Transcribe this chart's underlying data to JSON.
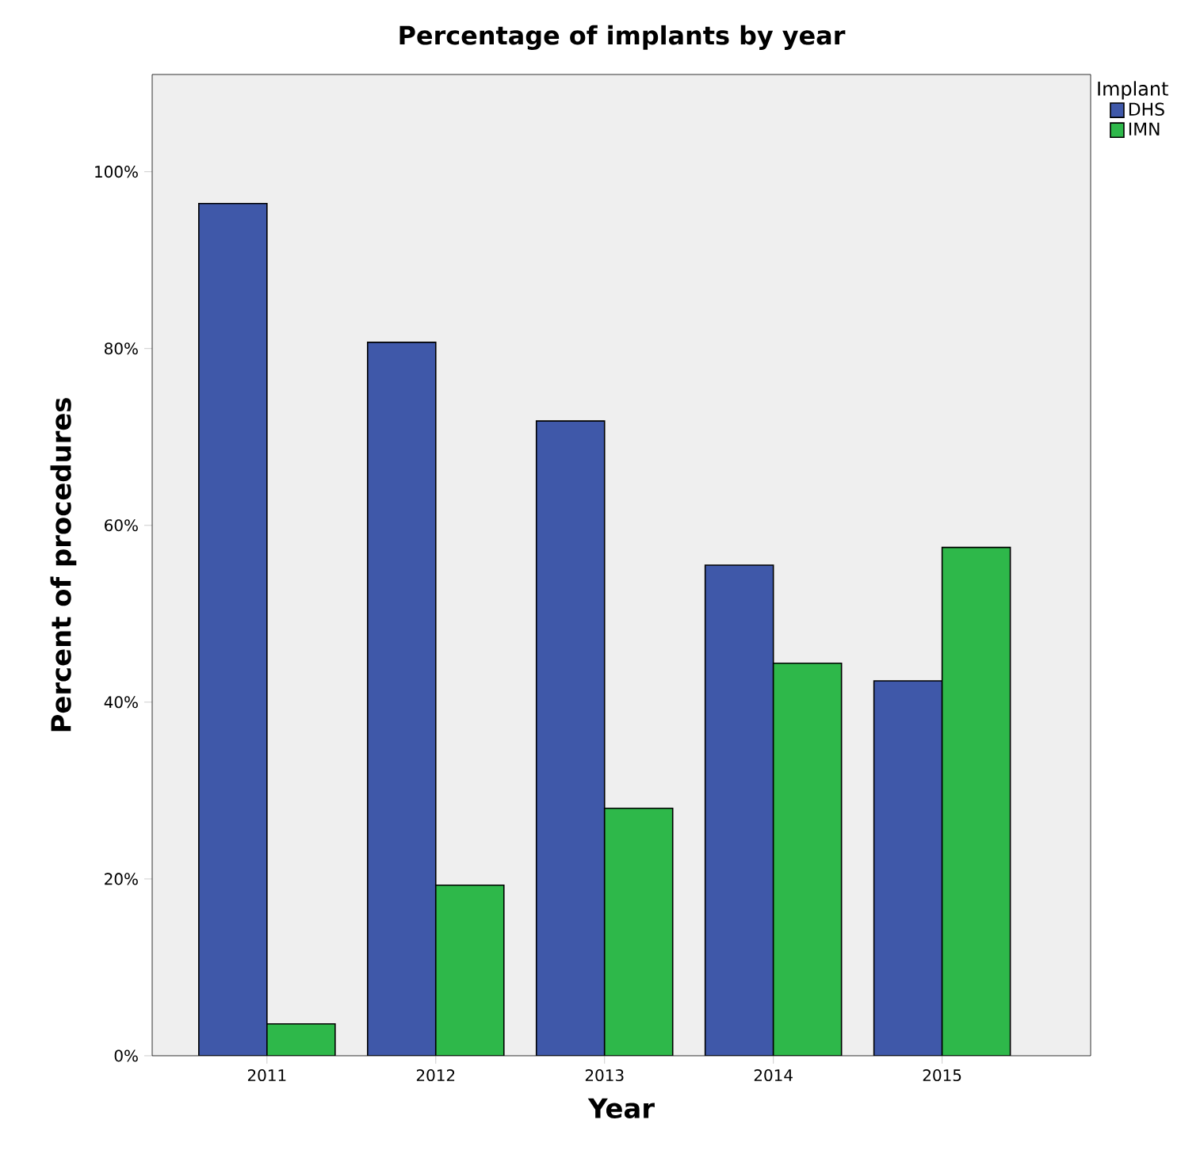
{
  "chart_data": {
    "type": "bar",
    "title": "Percentage of implants by year",
    "xlabel": "Year",
    "ylabel": "Percent of procedures",
    "legend_title": "Implant",
    "legend": "top right",
    "categories": [
      "2011",
      "2012",
      "2013",
      "2014",
      "2015"
    ],
    "series": [
      {
        "name": "DHS",
        "color": "#3f58a9",
        "values": [
          96.4,
          80.7,
          71.8,
          55.5,
          42.4
        ]
      },
      {
        "name": "IMN",
        "color": "#2eb84a",
        "values": [
          3.6,
          19.3,
          28.0,
          44.4,
          57.5
        ]
      }
    ],
    "ylim": [
      0,
      111
    ],
    "yticks": [
      {
        "value": 0,
        "label": "0%"
      },
      {
        "value": 20,
        "label": "20%"
      },
      {
        "value": 40,
        "label": "40%"
      },
      {
        "value": 60,
        "label": "60%"
      },
      {
        "value": 80,
        "label": "80%"
      },
      {
        "value": 100,
        "label": "100%"
      }
    ]
  }
}
